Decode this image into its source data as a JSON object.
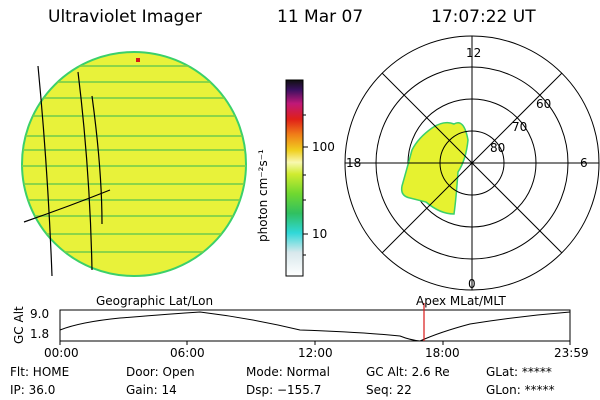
{
  "header": {
    "instrument": "Ultraviolet Imager",
    "date": "11 Mar 07",
    "time": "17:07:22 UT"
  },
  "colorbar": {
    "label": "photon cm⁻²s⁻¹",
    "ticks": [
      "100",
      "10"
    ]
  },
  "polar": {
    "mlt_labels": {
      "top": "12",
      "left": "18",
      "right": "6",
      "bottom": "0"
    },
    "lat_labels": [
      "60",
      "70",
      "80"
    ]
  },
  "orbit": {
    "axis_label": "GC Alt",
    "y_ticks": [
      "9.0",
      "1.8"
    ],
    "left_caption": "Geographic Lat/Lon",
    "right_caption": "Apex MLat/MLT",
    "x_ticks": [
      "00:00",
      "06:00",
      "12:00",
      "18:00",
      "23:59"
    ]
  },
  "status": {
    "flt": "Flt: HOME",
    "ip": "IP: 36.0",
    "door": "Door: Open",
    "gain": "Gain: 14",
    "mode": "Mode: Normal",
    "dsp": "Dsp: −155.7",
    "gcalt": "GC Alt: 2.6 Re",
    "seq": "Seq: 22",
    "glat": "GLat: *****",
    "glon": "GLon: *****"
  },
  "colors": {
    "disk_fill": "#e8f23a",
    "disk_edge": "#3bd06a",
    "stripe": "#7cd04a",
    "oval": "#e6f230",
    "marker": "#d81818"
  }
}
